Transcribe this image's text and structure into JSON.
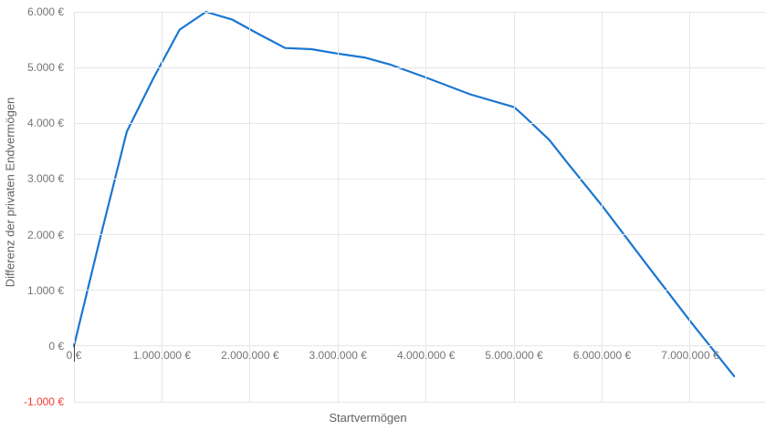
{
  "chart_data": {
    "type": "line",
    "title": "",
    "xlabel": "Startvermögen",
    "ylabel": "Differenz der privaten Endvermögen",
    "xlim": [
      0,
      7851000
    ],
    "ylim": [
      -1000,
      6000
    ],
    "grid": true,
    "legend": "none",
    "x_ticks": [
      {
        "value": 0,
        "label": "0 €"
      },
      {
        "value": 1000000,
        "label": "1.000.000 €"
      },
      {
        "value": 2000000,
        "label": "2.000.000 €"
      },
      {
        "value": 3000000,
        "label": "3.000.000 €"
      },
      {
        "value": 4000000,
        "label": "4.000.000 €"
      },
      {
        "value": 5000000,
        "label": "5.000.000 €"
      },
      {
        "value": 6000000,
        "label": "6.000.000 €"
      },
      {
        "value": 7000000,
        "label": "7.000.000 €"
      }
    ],
    "y_ticks": [
      {
        "value": 6000,
        "label": "6.000 €"
      },
      {
        "value": 5000,
        "label": "5.000 €"
      },
      {
        "value": 4000,
        "label": "4.000 €"
      },
      {
        "value": 3000,
        "label": "3.000 €"
      },
      {
        "value": 2000,
        "label": "2.000 €"
      },
      {
        "value": 1000,
        "label": "1.000 €"
      },
      {
        "value": 0,
        "label": "0 €"
      },
      {
        "value": -1000,
        "label": "-1.000 €"
      }
    ],
    "series": [
      {
        "name": "Differenz der privaten Endvermögen",
        "color": "#1976d2",
        "points": [
          [
            0,
            0
          ],
          [
            300000,
            1950
          ],
          [
            600000,
            3850
          ],
          [
            900000,
            4800
          ],
          [
            1200000,
            5680
          ],
          [
            1500000,
            6000
          ],
          [
            1800000,
            5860
          ],
          [
            2100000,
            5600
          ],
          [
            2400000,
            5350
          ],
          [
            2700000,
            5330
          ],
          [
            3000000,
            5250
          ],
          [
            3300000,
            5180
          ],
          [
            3600000,
            5050
          ],
          [
            4000000,
            4820
          ],
          [
            4500000,
            4520
          ],
          [
            5000000,
            4290
          ],
          [
            5100000,
            4150
          ],
          [
            5400000,
            3700
          ],
          [
            5600000,
            3300
          ],
          [
            6000000,
            2520
          ],
          [
            6500000,
            1480
          ],
          [
            7000000,
            450
          ],
          [
            7500000,
            -540
          ]
        ]
      }
    ],
    "colors": {
      "line": "#1976d2",
      "grid": "#e6e6e6",
      "tick_label": "#757575",
      "negative_tick_label": "#f03b36",
      "axis_title": "#616161",
      "origin_tick": "#424242",
      "background": "#ffffff"
    }
  }
}
